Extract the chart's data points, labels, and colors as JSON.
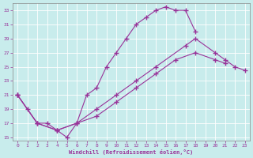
{
  "xlabel": "Windchill (Refroidissement éolien,°C)",
  "bg_color": "#c8ecec",
  "line_color": "#993399",
  "xlim": [
    -0.5,
    23.5
  ],
  "ylim": [
    14.5,
    34
  ],
  "xticks": [
    0,
    1,
    2,
    3,
    4,
    5,
    6,
    7,
    8,
    9,
    10,
    11,
    12,
    13,
    14,
    15,
    16,
    17,
    18,
    19,
    20,
    21,
    22,
    23
  ],
  "yticks": [
    15,
    17,
    19,
    21,
    23,
    25,
    27,
    29,
    31,
    33
  ],
  "line1_x": [
    0,
    1,
    2,
    3,
    4,
    5,
    6,
    7,
    8,
    9,
    10,
    11,
    12,
    13,
    14,
    15,
    16,
    17,
    18
  ],
  "line1_y": [
    21,
    19,
    17,
    17,
    16,
    15,
    17,
    21,
    22,
    25,
    27,
    29,
    31,
    32,
    33,
    33.5,
    33,
    33,
    30
  ],
  "line2_x": [
    0,
    2,
    4,
    6,
    8,
    10,
    12,
    14,
    17,
    18,
    20,
    21,
    22,
    23
  ],
  "line2_y": [
    21,
    17,
    16,
    17,
    19,
    21,
    23,
    25,
    28,
    29,
    27,
    26,
    25,
    24.5
  ],
  "line3_x": [
    0,
    2,
    4,
    6,
    8,
    10,
    12,
    14,
    16,
    18,
    20,
    21,
    22,
    23
  ],
  "line3_y": [
    21,
    17,
    16,
    17,
    18,
    20,
    22,
    24,
    26,
    27,
    26,
    25.5,
    null,
    null
  ]
}
